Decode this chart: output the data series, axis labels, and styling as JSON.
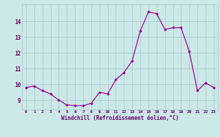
{
  "x_values": [
    0,
    1,
    2,
    3,
    4,
    5,
    6,
    7,
    8,
    9,
    10,
    11,
    12,
    13,
    14,
    15,
    16,
    17,
    18,
    19,
    20,
    21,
    22,
    23
  ],
  "y_values": [
    9.8,
    9.9,
    9.6,
    9.4,
    9.0,
    8.7,
    8.65,
    8.65,
    8.8,
    9.5,
    9.4,
    10.3,
    10.75,
    11.5,
    13.4,
    14.6,
    14.5,
    13.5,
    13.6,
    13.6,
    12.1,
    9.6,
    10.1,
    9.8
  ],
  "xlabel": "Windchill (Refroidissement éolien,°C)",
  "line_color": "#990099",
  "marker_color": "#990099",
  "bg_color": "#cce8e8",
  "grid_color": "#aacccc",
  "text_color": "#660066",
  "ylim_min": 8.4,
  "ylim_max": 15.1,
  "xlim_min": -0.5,
  "xlim_max": 23.5,
  "ytick_labels": [
    "9",
    "10",
    "11",
    "12",
    "13",
    "14"
  ],
  "ytick_values": [
    9,
    10,
    11,
    12,
    13,
    14
  ]
}
